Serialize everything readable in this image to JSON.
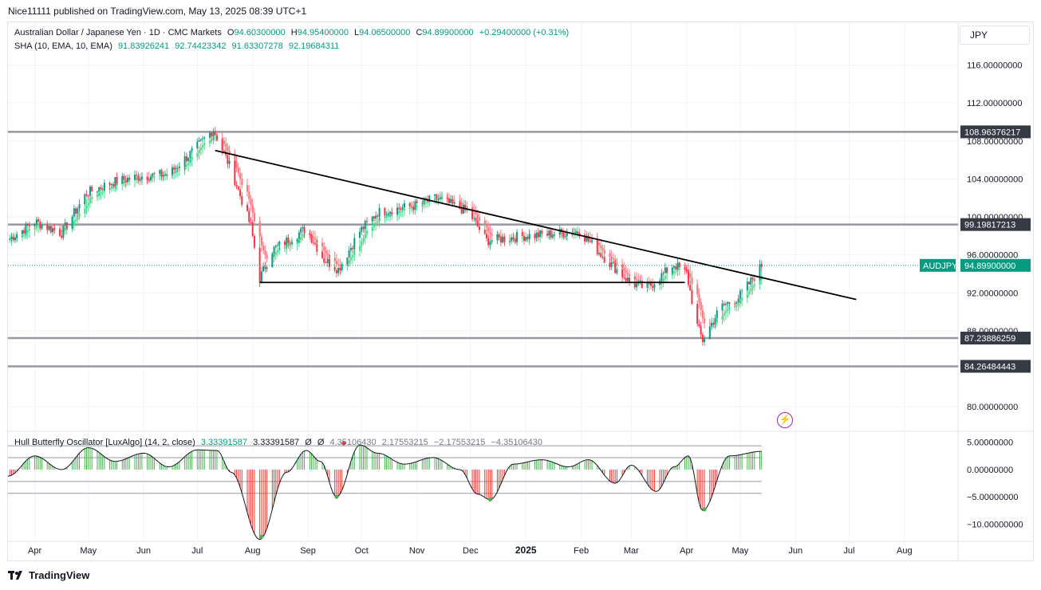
{
  "header": {
    "published": "Nice11111 published on TradingView.com, May 13, 2025 08:39 UTC+1"
  },
  "currency_button": "JPY",
  "legend_main": {
    "title": "Australian Dollar / Japanese Yen · 1D · CMC Markets",
    "o_label": "O",
    "o": "94.60300000",
    "h_label": "H",
    "h": "94.95400000",
    "l_label": "L",
    "l": "94.06500000",
    "c_label": "C",
    "c": "94.89900000",
    "change": "+0.29400000 (+0.31%)"
  },
  "legend_sha": {
    "title": "SHA (10, EMA, 10, EMA)",
    "v1": "91.83926241",
    "v2": "92.74423342",
    "v3": "91.63307278",
    "v4": "92.19684311"
  },
  "legend_osc": {
    "title": "Hull Butterfly Oscillator [LuxAlgo] (14, 2, close)",
    "v1": "3.33391587",
    "v2": "3.33391587",
    "z1": "Ø",
    "z2": "Ø",
    "v3": "4.35106430",
    "v4": "2.17553215",
    "v5": "−2.17553215",
    "v6": "−4.35106430"
  },
  "footer": {
    "brand": "TradingView"
  },
  "colors": {
    "up": "#089981",
    "down": "#f23645",
    "ha_up": "#4cd98d",
    "ha_down": "#f77c80",
    "level": "#9598a1",
    "trend": "#000000",
    "osc_up": "#4caf50",
    "osc_down": "#e53935"
  },
  "chart_data": {
    "type": "candlestick",
    "symbol": "AUDJPY",
    "price_axis": {
      "ticks": [
        116,
        112,
        108,
        104,
        100,
        96,
        92,
        88,
        80
      ],
      "tick_labels": [
        "116.00000000",
        "112.00000000",
        "108.00000000",
        "104.00000000",
        "100.00000000",
        "96.00000000",
        "92.00000000",
        "88.00000000",
        "80.00000000"
      ],
      "range": [
        77.5,
        120.5
      ]
    },
    "x_axis": {
      "labels": [
        "Apr",
        "May",
        "Jun",
        "Jul",
        "Aug",
        "Sep",
        "Oct",
        "Nov",
        "Dec",
        "2025",
        "Feb",
        "Mar",
        "Apr",
        "May",
        "Jun",
        "Jul",
        "Aug"
      ],
      "bold": [
        "2025"
      ],
      "start": "2024-03-17",
      "end": "2025-08-31"
    },
    "horizontal_levels": [
      {
        "value": 108.96376217,
        "label": "108.96376217"
      },
      {
        "value": 99.19817213,
        "label": "99.19817213"
      },
      {
        "value": 87.23886259,
        "label": "87.23886259"
      },
      {
        "value": 84.26484443,
        "label": "84.26484443"
      }
    ],
    "current_price": {
      "symbol": "AUDJPY",
      "value": 94.899,
      "label": "94.89900000"
    },
    "trendlines": [
      {
        "name": "descending-resistance",
        "from": [
          "2024-07-11",
          107.0
        ],
        "to": [
          "2025-07-05",
          91.3
        ]
      },
      {
        "name": "support-line",
        "from": [
          "2024-08-05",
          93.1
        ],
        "to": [
          "2025-03-31",
          93.1
        ]
      }
    ],
    "price_path": [
      [
        "2024-03-17",
        97.6
      ],
      [
        "2024-04-01",
        99.5
      ],
      [
        "2024-04-16",
        98.3
      ],
      [
        "2024-04-30",
        102.5
      ],
      [
        "2024-05-15",
        103.7
      ],
      [
        "2024-05-31",
        104.3
      ],
      [
        "2024-06-15",
        104.5
      ],
      [
        "2024-06-30",
        107.2
      ],
      [
        "2024-07-10",
        109.2
      ],
      [
        "2024-07-20",
        105.0
      ],
      [
        "2024-07-31",
        99.0
      ],
      [
        "2024-08-05",
        93.5
      ],
      [
        "2024-08-12",
        96.5
      ],
      [
        "2024-08-31",
        98.8
      ],
      [
        "2024-09-10",
        95.5
      ],
      [
        "2024-09-18",
        94.5
      ],
      [
        "2024-09-30",
        98.5
      ],
      [
        "2024-10-10",
        100.5
      ],
      [
        "2024-10-31",
        101.2
      ],
      [
        "2024-11-12",
        102.0
      ],
      [
        "2024-11-30",
        100.5
      ],
      [
        "2024-12-10",
        97.5
      ],
      [
        "2024-12-31",
        98.0
      ],
      [
        "2025-01-15",
        98.2
      ],
      [
        "2025-01-31",
        98.5
      ],
      [
        "2025-02-15",
        95.5
      ],
      [
        "2025-03-01",
        93.0
      ],
      [
        "2025-03-10",
        92.5
      ],
      [
        "2025-03-25",
        95.0
      ],
      [
        "2025-04-01",
        94.0
      ],
      [
        "2025-04-07",
        88.5
      ],
      [
        "2025-04-10",
        87.0
      ],
      [
        "2025-04-20",
        90.5
      ],
      [
        "2025-04-30",
        91.5
      ],
      [
        "2025-05-07",
        93.2
      ],
      [
        "2025-05-13",
        94.9
      ]
    ],
    "oscillator": {
      "name": "Hull Butterfly Oscillator",
      "ticks": [
        5,
        0,
        -5,
        -10
      ],
      "tick_labels": [
        "5.00000000",
        "0.00000000",
        "−5.00000000",
        "−10.00000000"
      ],
      "range": [
        -13,
        7
      ],
      "levels": [
        4.3510643,
        2.17553215,
        -2.17553215,
        -4.3510643
      ],
      "path": [
        [
          "2024-03-17",
          -1.2
        ],
        [
          "2024-04-01",
          2.5
        ],
        [
          "2024-04-16",
          0.0
        ],
        [
          "2024-05-01",
          4.0
        ],
        [
          "2024-05-16",
          1.5
        ],
        [
          "2024-06-01",
          3.0
        ],
        [
          "2024-06-15",
          0.5
        ],
        [
          "2024-07-01",
          3.6
        ],
        [
          "2024-07-12",
          3.5
        ],
        [
          "2024-07-20",
          -0.5
        ],
        [
          "2024-08-05",
          -12.8
        ],
        [
          "2024-08-20",
          -0.5
        ],
        [
          "2024-08-31",
          3.5
        ],
        [
          "2024-09-08",
          1.5
        ],
        [
          "2024-09-17",
          -5.0
        ],
        [
          "2024-09-30",
          4.5
        ],
        [
          "2024-10-10",
          3.0
        ],
        [
          "2024-10-25",
          1.0
        ],
        [
          "2024-11-10",
          2.2
        ],
        [
          "2024-11-25",
          0.0
        ],
        [
          "2024-12-05",
          -4.5
        ],
        [
          "2024-12-12",
          -5.5
        ],
        [
          "2024-12-25",
          1.0
        ],
        [
          "2025-01-10",
          1.8
        ],
        [
          "2025-01-25",
          0.5
        ],
        [
          "2025-02-05",
          1.8
        ],
        [
          "2025-02-20",
          -2.5
        ],
        [
          "2025-03-01",
          0.8
        ],
        [
          "2025-03-15",
          -4.0
        ],
        [
          "2025-03-25",
          0.5
        ],
        [
          "2025-04-02",
          2.5
        ],
        [
          "2025-04-10",
          -7.5
        ],
        [
          "2025-04-25",
          2.5
        ],
        [
          "2025-05-13",
          3.33
        ]
      ],
      "markers": [
        {
          "date": "2024-08-06",
          "value": -12.3,
          "color": "#4caf50"
        },
        {
          "date": "2024-09-17",
          "value": -5.0,
          "color": "#4caf50"
        },
        {
          "date": "2024-09-21",
          "value": 4.8,
          "color": "#e53935"
        },
        {
          "date": "2024-12-12",
          "value": -5.5,
          "color": "#4caf50"
        },
        {
          "date": "2025-04-11",
          "value": -7.3,
          "color": "#4caf50"
        }
      ]
    }
  }
}
